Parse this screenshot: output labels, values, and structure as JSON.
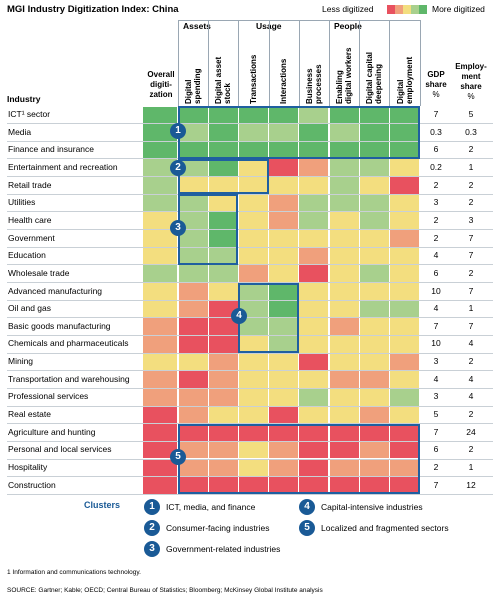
{
  "title": "MGI Industry Digitization Index: China",
  "legend": {
    "less_label": "Less digitized",
    "more_label": "More digitized",
    "swatches": [
      "#e8515f",
      "#f0a07c",
      "#f3de7f",
      "#a8d08d",
      "#5fb76a"
    ]
  },
  "headers": {
    "industry": "Industry",
    "overall": [
      "Overall",
      "digiti-",
      "zation"
    ],
    "groups": [
      "Assets",
      "Usage",
      "People"
    ],
    "gdp": [
      "GDP",
      "share",
      "%"
    ],
    "employment": [
      "Employ-",
      "ment",
      "share",
      "%"
    ]
  },
  "columns": [
    [
      "Digital",
      "spending"
    ],
    [
      "Digital asset",
      "stock"
    ],
    [
      "Transactions"
    ],
    [
      "Interactions"
    ],
    [
      "Business",
      "processes"
    ],
    [
      "Enabling",
      "digital workers"
    ],
    [
      "Digital capital",
      "deepening"
    ],
    [
      "Digital",
      "employment"
    ]
  ],
  "colors": {
    "1": "#e8515f",
    "2": "#f0a07c",
    "3": "#f3de7f",
    "4": "#a8d08d",
    "5": "#5fb76a"
  },
  "rows": [
    {
      "industry": "ICT¹ sector",
      "overall": 5,
      "cells": [
        5,
        5,
        5,
        5,
        4,
        5,
        5,
        5
      ],
      "gdp": "7",
      "emp": "5"
    },
    {
      "industry": "Media",
      "overall": 5,
      "cells": [
        4,
        5,
        4,
        4,
        5,
        4,
        5,
        5
      ],
      "gdp": "0.3",
      "emp": "0.3"
    },
    {
      "industry": "Finance and insurance",
      "overall": 5,
      "cells": [
        5,
        5,
        5,
        5,
        5,
        5,
        5,
        5
      ],
      "gdp": "6",
      "emp": "2"
    },
    {
      "industry": "Entertainment and recreation",
      "overall": 4,
      "cells": [
        4,
        5,
        3,
        1,
        2,
        4,
        4,
        3
      ],
      "gdp": "0.2",
      "emp": "1"
    },
    {
      "industry": "Retail trade",
      "overall": 4,
      "cells": [
        3,
        3,
        3,
        3,
        3,
        4,
        3,
        1
      ],
      "gdp": "2",
      "emp": "2"
    },
    {
      "industry": "Utilities",
      "overall": 4,
      "cells": [
        4,
        3,
        3,
        2,
        4,
        4,
        4,
        3
      ],
      "gdp": "3",
      "emp": "2"
    },
    {
      "industry": "Health care",
      "overall": 3,
      "cells": [
        4,
        5,
        3,
        2,
        4,
        3,
        4,
        3
      ],
      "gdp": "2",
      "emp": "3"
    },
    {
      "industry": "Government",
      "overall": 3,
      "cells": [
        4,
        5,
        3,
        3,
        3,
        3,
        3,
        2
      ],
      "gdp": "2",
      "emp": "7"
    },
    {
      "industry": "Education",
      "overall": 3,
      "cells": [
        4,
        4,
        3,
        3,
        2,
        3,
        3,
        3
      ],
      "gdp": "4",
      "emp": "7"
    },
    {
      "industry": "Wholesale trade",
      "overall": 4,
      "cells": [
        4,
        4,
        2,
        3,
        1,
        3,
        4,
        3
      ],
      "gdp": "6",
      "emp": "2"
    },
    {
      "industry": "Advanced manufacturing",
      "overall": 3,
      "cells": [
        2,
        3,
        4,
        5,
        3,
        3,
        3,
        3
      ],
      "gdp": "10",
      "emp": "7"
    },
    {
      "industry": "Oil and gas",
      "overall": 3,
      "cells": [
        2,
        1,
        4,
        5,
        3,
        3,
        4,
        4
      ],
      "gdp": "4",
      "emp": "1"
    },
    {
      "industry": "Basic goods manufacturing",
      "overall": 2,
      "cells": [
        1,
        1,
        4,
        4,
        3,
        2,
        3,
        3
      ],
      "gdp": "7",
      "emp": "7"
    },
    {
      "industry": "Chemicals and pharmaceuticals",
      "overall": 2,
      "cells": [
        1,
        1,
        3,
        4,
        3,
        3,
        3,
        3
      ],
      "gdp": "10",
      "emp": "4"
    },
    {
      "industry": "Mining",
      "overall": 3,
      "cells": [
        3,
        2,
        3,
        3,
        1,
        3,
        3,
        2
      ],
      "gdp": "3",
      "emp": "2"
    },
    {
      "industry": "Transportation and warehousing",
      "overall": 2,
      "cells": [
        1,
        2,
        3,
        3,
        3,
        2,
        2,
        3
      ],
      "gdp": "4",
      "emp": "4"
    },
    {
      "industry": "Professional services",
      "overall": 2,
      "cells": [
        2,
        2,
        3,
        3,
        4,
        3,
        3,
        4
      ],
      "gdp": "3",
      "emp": "4"
    },
    {
      "industry": "Real estate",
      "overall": 1,
      "cells": [
        2,
        3,
        3,
        1,
        3,
        3,
        2,
        3
      ],
      "gdp": "5",
      "emp": "2"
    },
    {
      "industry": "Agriculture and hunting",
      "overall": 1,
      "cells": [
        1,
        1,
        1,
        1,
        1,
        1,
        1,
        1
      ],
      "gdp": "7",
      "emp": "24"
    },
    {
      "industry": "Personal and local services",
      "overall": 1,
      "cells": [
        2,
        2,
        3,
        2,
        1,
        1,
        2,
        1
      ],
      "gdp": "6",
      "emp": "2"
    },
    {
      "industry": "Hospitality",
      "overall": 1,
      "cells": [
        2,
        2,
        3,
        2,
        1,
        2,
        2,
        2
      ],
      "gdp": "2",
      "emp": "1"
    },
    {
      "industry": "Construction",
      "overall": 1,
      "cells": [
        1,
        1,
        1,
        1,
        1,
        1,
        1,
        1
      ],
      "gdp": "7",
      "emp": "12"
    }
  ],
  "clusters_title": "Clusters",
  "clusters": [
    {
      "num": "1",
      "label": "ICT, media, and finance"
    },
    {
      "num": "2",
      "label": "Consumer-facing industries"
    },
    {
      "num": "3",
      "label": "Government-related industries"
    },
    {
      "num": "4",
      "label": "Capital-intensive industries"
    },
    {
      "num": "5",
      "label": "Localized and fragmented sectors"
    }
  ],
  "footnote": "1  Information and communications technology.",
  "source": "SOURCE:  Gartner; Kable; OECD; Central Bureau of Statistics; Bloomberg; McKinsey Global Institute analysis",
  "chart_data": {
    "type": "heatmap",
    "title": "MGI Industry Digitization Index: China",
    "scale": {
      "1": "Less digitized",
      "5": "More digitized"
    },
    "categories_y": [
      "ICT¹ sector",
      "Media",
      "Finance and insurance",
      "Entertainment and recreation",
      "Retail trade",
      "Utilities",
      "Health care",
      "Government",
      "Education",
      "Wholesale trade",
      "Advanced manufacturing",
      "Oil and gas",
      "Basic goods manufacturing",
      "Chemicals and pharmaceuticals",
      "Mining",
      "Transportation and warehousing",
      "Professional services",
      "Real estate",
      "Agriculture and hunting",
      "Personal and local services",
      "Hospitality",
      "Construction"
    ],
    "categories_x": [
      "Overall digitization",
      "Digital spending",
      "Digital asset stock",
      "Transactions",
      "Interactions",
      "Business processes",
      "Enabling digital workers",
      "Digital capital deepening",
      "Digital employment"
    ],
    "gdp_share": [
      7,
      0.3,
      6,
      0.2,
      2,
      3,
      2,
      2,
      4,
      6,
      10,
      4,
      7,
      10,
      3,
      4,
      3,
      5,
      7,
      6,
      2,
      7
    ],
    "employment_share": [
      5,
      0.3,
      2,
      1,
      2,
      2,
      3,
      7,
      7,
      2,
      7,
      1,
      7,
      4,
      2,
      4,
      4,
      2,
      24,
      2,
      1,
      12
    ]
  }
}
